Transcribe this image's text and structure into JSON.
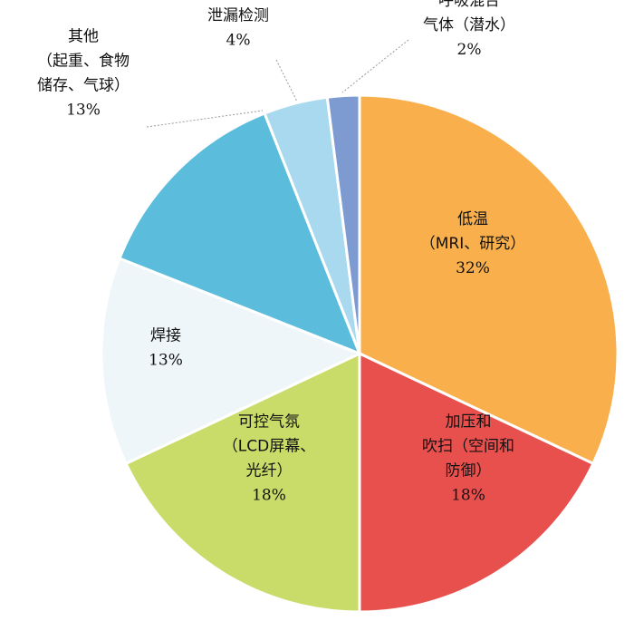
{
  "chart_data": {
    "type": "pie",
    "start_angle_deg": 0,
    "direction": "clockwise",
    "slices": [
      {
        "name_lines": [
          "低温",
          "（MRI、研究）"
        ],
        "value": 32,
        "value_label": "32%",
        "color": "#F9B04C"
      },
      {
        "name_lines": [
          "加压和",
          "吹扫（空间和",
          "防御）"
        ],
        "value": 18,
        "value_label": "18%",
        "color": "#E8504E"
      },
      {
        "name_lines": [
          "可控气氛",
          "（LCD屏幕、",
          "光纤）"
        ],
        "value": 18,
        "value_label": "18%",
        "color": "#C9DC6A"
      },
      {
        "name_lines": [
          "焊接"
        ],
        "value": 13,
        "value_label": "13%",
        "color": "#EEF6FA"
      },
      {
        "name_lines": [
          "其他",
          "（起重、食物",
          "储存、气球）"
        ],
        "value": 13,
        "value_label": "13%",
        "color": "#5BBDDB"
      },
      {
        "name_lines": [
          "泄漏检测"
        ],
        "value": 4,
        "value_label": "4%",
        "color": "#A9D9EE"
      },
      {
        "name_lines": [
          "呼吸混合",
          "气体（潜水）"
        ],
        "value": 2,
        "value_label": "2%",
        "color": "#7E9BD1"
      }
    ]
  }
}
